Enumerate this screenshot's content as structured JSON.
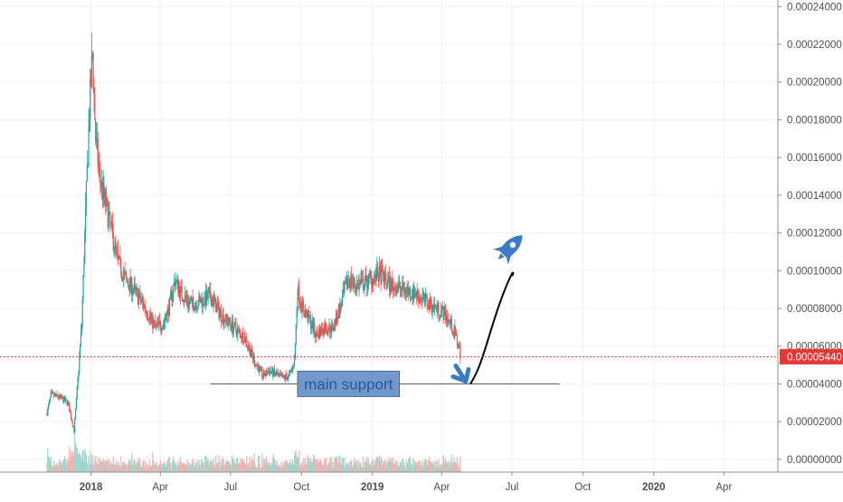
{
  "colors": {
    "background": "#ffffff",
    "grid": "#eef0f3",
    "axis_text": "#4a4e59",
    "axis_line": "#8b8f99",
    "candle_up": "#26a69a",
    "candle_down": "#ef5350",
    "volume_up": "#9fd6cf",
    "volume_down": "#f4b3b1",
    "price_line": "#e53935",
    "price_label_bg": "#e53935",
    "price_label_text": "#ffffff",
    "annotation_blue": "#3b7cc4",
    "annotation_box_fill": "#6b93c9",
    "annotation_box_text": "#27579a",
    "support_line": "#555555",
    "drawn_curve": "#000000"
  },
  "chart_data": {
    "type": "candlestick",
    "y_axis": {
      "ticks": [
        "0.00024000",
        "0.00022000",
        "0.00020000",
        "0.00018000",
        "0.00016000",
        "0.00014000",
        "0.00012000",
        "0.00010000",
        "0.00008000",
        "0.00006000",
        "0.00004000",
        "0.00002000",
        "0.00000000"
      ],
      "range": [
        -6.8e-06,
        0.0002435
      ]
    },
    "x_axis": {
      "ticks": [
        "2018",
        "Apr",
        "Jul",
        "Oct",
        "2019",
        "Apr",
        "Jul",
        "Oct",
        "2020",
        "Apr"
      ],
      "bold_ticks": [
        "2018",
        "2019",
        "2020"
      ],
      "range": [
        "2017-09-05",
        "2020-06-10"
      ]
    },
    "last_price": {
      "value": 5.44e-05,
      "label": "0.00005440"
    },
    "close_series": {
      "name": "",
      "points": [
        [
          "2017-11-05",
          2.45e-05
        ],
        [
          "2017-11-10",
          3.4e-05
        ],
        [
          "2017-11-20",
          3.3e-05
        ],
        [
          "2017-12-02",
          3e-05
        ],
        [
          "2017-12-10",
          1.5e-05
        ],
        [
          "2017-12-15",
          4.2e-05
        ],
        [
          "2017-12-20",
          7.2e-05
        ],
        [
          "2017-12-25",
          0.00013
        ],
        [
          "2017-12-30",
          0.000185
        ],
        [
          "2018-01-03",
          0.000215
        ],
        [
          "2018-01-07",
          0.00017
        ],
        [
          "2018-01-12",
          0.00015
        ],
        [
          "2018-01-20",
          0.000135
        ],
        [
          "2018-01-28",
          0.00012
        ],
        [
          "2018-02-05",
          0.000105
        ],
        [
          "2018-02-15",
          9.5e-05
        ],
        [
          "2018-02-25",
          9e-05
        ],
        [
          "2018-03-10",
          8.2e-05
        ],
        [
          "2018-03-25",
          7e-05
        ],
        [
          "2018-04-05",
          7.2e-05
        ],
        [
          "2018-04-12",
          8e-05
        ],
        [
          "2018-04-20",
          9.5e-05
        ],
        [
          "2018-04-28",
          8.8e-05
        ],
        [
          "2018-05-10",
          8.2e-05
        ],
        [
          "2018-05-25",
          8.4e-05
        ],
        [
          "2018-06-05",
          8.6e-05
        ],
        [
          "2018-06-20",
          7.6e-05
        ],
        [
          "2018-07-05",
          7e-05
        ],
        [
          "2018-07-20",
          6.4e-05
        ],
        [
          "2018-08-01",
          5.2e-05
        ],
        [
          "2018-08-12",
          4.4e-05
        ],
        [
          "2018-08-20",
          4.7e-05
        ],
        [
          "2018-09-05",
          4.3e-05
        ],
        [
          "2018-09-15",
          4.4e-05
        ],
        [
          "2018-09-22",
          5.2e-05
        ],
        [
          "2018-09-26",
          9e-05
        ],
        [
          "2018-10-02",
          8e-05
        ],
        [
          "2018-10-10",
          7.5e-05
        ],
        [
          "2018-10-20",
          6.6e-05
        ],
        [
          "2018-11-01",
          7e-05
        ],
        [
          "2018-11-10",
          6.9e-05
        ],
        [
          "2018-11-20",
          8e-05
        ],
        [
          "2018-12-01",
          9.6e-05
        ],
        [
          "2018-12-10",
          9.2e-05
        ],
        [
          "2018-12-20",
          9.3e-05
        ],
        [
          "2019-01-01",
          9.6e-05
        ],
        [
          "2019-01-10",
          9.8e-05
        ],
        [
          "2019-01-25",
          9.2e-05
        ],
        [
          "2019-02-10",
          9e-05
        ],
        [
          "2019-02-25",
          8.8e-05
        ],
        [
          "2019-03-10",
          8.4e-05
        ],
        [
          "2019-03-25",
          8e-05
        ],
        [
          "2019-04-05",
          7.7e-05
        ],
        [
          "2019-04-12",
          7.2e-05
        ],
        [
          "2019-04-20",
          6.4e-05
        ],
        [
          "2019-04-26",
          5.44e-05
        ]
      ]
    },
    "annotations": {
      "support_level": 4e-05,
      "support_from": "2018-06-05",
      "support_to": "2019-09-01",
      "box_label": "main support",
      "projection": [
        [
          "2019-05-08",
          4e-05
        ],
        [
          "2019-06-01",
          6.8e-05
        ],
        [
          "2019-06-20",
          8.8e-05
        ],
        [
          "2019-07-01",
          9.9e-05
        ]
      ],
      "rocket_icon": "rocket-icon",
      "arrow_icon": "down-arrow-icon"
    }
  }
}
